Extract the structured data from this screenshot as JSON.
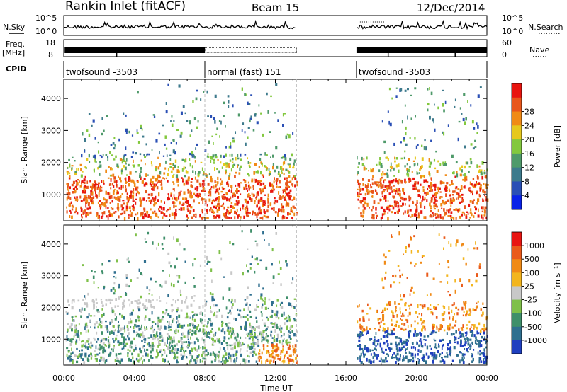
{
  "header": {
    "station": "Rankin Inlet (fitACF)",
    "beam": "Beam 15",
    "date": "12/Dec/2014"
  },
  "top_panel": {
    "left_label": "N.Sky",
    "left_ticks": [
      "10^5",
      "10^0"
    ],
    "right_label": "N.Search",
    "right_ticks": [
      "10^5",
      "10^0"
    ]
  },
  "freq_panel": {
    "left_label": "Freq.",
    "left_unit": "[MHz]",
    "left_ticks": [
      "18",
      "8"
    ],
    "right_label": "Nave",
    "right_ticks": [
      "60",
      "0"
    ]
  },
  "cpid_panel": {
    "label": "CPID",
    "segments": [
      {
        "name": "twofsound -3503",
        "start_hour": 0
      },
      {
        "name": "normal (fast) 151",
        "start_hour": 8
      },
      {
        "name": "twofsound -3503",
        "start_hour": 16.6
      }
    ]
  },
  "chart_data": [
    {
      "type": "heatmap",
      "name": "power",
      "ylabel": "Slant Range [km]",
      "xlabel": "Time UT",
      "xlim": [
        0,
        24
      ],
      "ylim": [
        180,
        4600
      ],
      "x_ticks": [
        "00:00",
        "04:00",
        "08:00",
        "12:00",
        "16:00",
        "20:00",
        "00:00"
      ],
      "y_ticks": [
        "1000",
        "2000",
        "3000",
        "4000"
      ],
      "colorbar": {
        "label": "Power [dB]",
        "ticks": [
          "4",
          "8",
          "12",
          "16",
          "20",
          "24",
          "28"
        ],
        "colors": [
          "#0a22e8",
          "#2a4fb5",
          "#3d7a8c",
          "#4f9a6a",
          "#83c83e",
          "#e6c81e",
          "#f08a16",
          "#e8561b",
          "#e8140f"
        ]
      },
      "data_gap_hours": [
        13.2,
        16.6
      ]
    },
    {
      "type": "heatmap",
      "name": "velocity",
      "ylabel": "Slant Range [km]",
      "xlabel": "Time UT",
      "xlim": [
        0,
        24
      ],
      "ylim": [
        180,
        4600
      ],
      "x_ticks": [
        "00:00",
        "04:00",
        "08:00",
        "12:00",
        "16:00",
        "20:00",
        "00:00"
      ],
      "y_ticks": [
        "1000",
        "2000",
        "3000",
        "4000"
      ],
      "colorbar": {
        "label": "Velocity [m s⁻¹]",
        "ticks": [
          "1000",
          "500",
          "100",
          "25",
          "-25",
          "-100",
          "-500",
          "-1000"
        ],
        "colors": [
          "#1f3fbf",
          "#2f6f8f",
          "#3f8f6a",
          "#7fc04a",
          "#c8c8c8",
          "#f3b51d",
          "#f08a16",
          "#ea5a1a",
          "#e81512"
        ]
      },
      "data_gap_hours": [
        13.2,
        16.6
      ]
    }
  ]
}
